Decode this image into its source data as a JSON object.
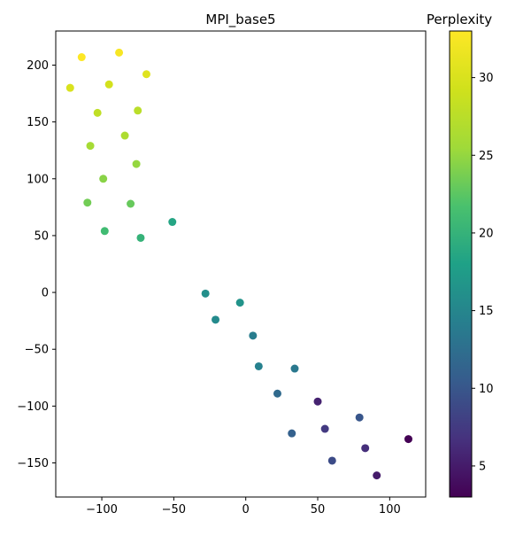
{
  "chart_data": {
    "type": "scatter",
    "title": "MPI_base5",
    "xlabel": "",
    "ylabel": "",
    "xlim": [
      -132,
      125
    ],
    "ylim": [
      -180,
      230
    ],
    "xticks": [
      -100,
      -50,
      0,
      50,
      100
    ],
    "yticks": [
      -150,
      -100,
      -50,
      0,
      50,
      100,
      150,
      200
    ],
    "grid": false,
    "colormap": "viridis",
    "colorbar": {
      "label": "Perplexity",
      "range": [
        3,
        33
      ],
      "ticks": [
        5,
        10,
        15,
        20,
        25,
        30
      ]
    },
    "points": [
      {
        "x": -114,
        "y": 207,
        "c": 33
      },
      {
        "x": -88,
        "y": 211,
        "c": 32.5
      },
      {
        "x": -69,
        "y": 192,
        "c": 30.5
      },
      {
        "x": -122,
        "y": 180,
        "c": 30
      },
      {
        "x": -95,
        "y": 183,
        "c": 29.5
      },
      {
        "x": -103,
        "y": 158,
        "c": 28
      },
      {
        "x": -75,
        "y": 160,
        "c": 27.5
      },
      {
        "x": -84,
        "y": 138,
        "c": 26.5
      },
      {
        "x": -108,
        "y": 129,
        "c": 26
      },
      {
        "x": -76,
        "y": 113,
        "c": 25
      },
      {
        "x": -99,
        "y": 100,
        "c": 24.5
      },
      {
        "x": -110,
        "y": 79,
        "c": 23.5
      },
      {
        "x": -80,
        "y": 78,
        "c": 23
      },
      {
        "x": -98,
        "y": 54,
        "c": 21
      },
      {
        "x": -73,
        "y": 48,
        "c": 20
      },
      {
        "x": -51,
        "y": 62,
        "c": 18.5
      },
      {
        "x": -28,
        "y": -1,
        "c": 16
      },
      {
        "x": -4,
        "y": -9,
        "c": 16.5
      },
      {
        "x": -21,
        "y": -24,
        "c": 15.5
      },
      {
        "x": 5,
        "y": -38,
        "c": 14
      },
      {
        "x": 9,
        "y": -65,
        "c": 14.5
      },
      {
        "x": 34,
        "y": -67,
        "c": 13.5
      },
      {
        "x": 22,
        "y": -89,
        "c": 12
      },
      {
        "x": 32,
        "y": -124,
        "c": 11
      },
      {
        "x": 79,
        "y": -110,
        "c": 10
      },
      {
        "x": 50,
        "y": -96,
        "c": 5.5
      },
      {
        "x": 55,
        "y": -120,
        "c": 7.5
      },
      {
        "x": 60,
        "y": -148,
        "c": 9
      },
      {
        "x": 83,
        "y": -137,
        "c": 6.5
      },
      {
        "x": 91,
        "y": -161,
        "c": 5
      },
      {
        "x": 113,
        "y": -129,
        "c": 3
      }
    ]
  }
}
